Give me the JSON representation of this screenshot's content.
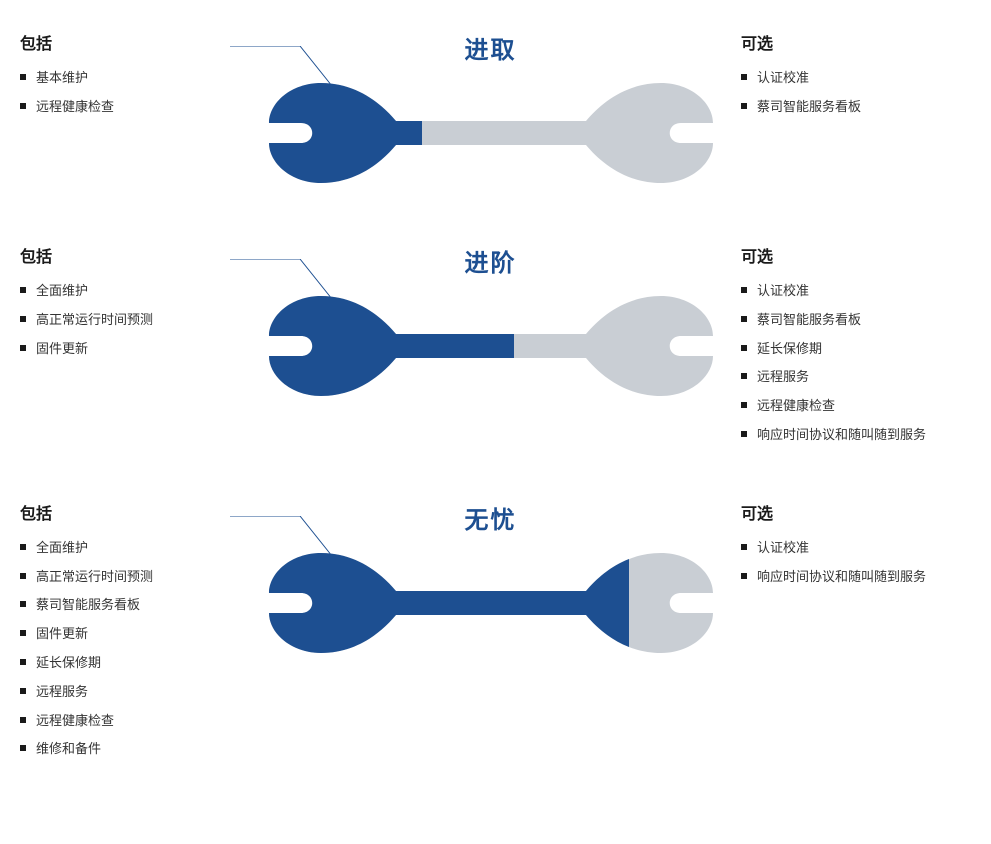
{
  "colors": {
    "primary": "#1d4f91",
    "secondary": "#c9ced4",
    "title_color": "#1d4f91",
    "text": "#333333",
    "bullet": "#1a1a1a",
    "leader": "#1d4f91",
    "background": "#ffffff"
  },
  "labels": {
    "included": "包括",
    "optional": "可选"
  },
  "tiers": [
    {
      "id": "tier-1",
      "title": "进取",
      "fill_ratio": 0.35,
      "included": [
        "基本维护",
        "远程健康检查"
      ],
      "optional": [
        "认证校准",
        "蔡司智能服务看板"
      ]
    },
    {
      "id": "tier-2",
      "title": "进阶",
      "fill_ratio": 0.55,
      "included": [
        "全面维护",
        "高正常运行时间预测",
        "固件更新"
      ],
      "optional": [
        "认证校准",
        "蔡司智能服务看板",
        "延长保修期",
        "远程服务",
        "远程健康检查",
        "响应时间协议和随叫随到服务"
      ]
    },
    {
      "id": "tier-3",
      "title": "无忧",
      "fill_ratio": 0.8,
      "included": [
        "全面维护",
        "高正常运行时间预测",
        "蔡司智能服务看板",
        "固件更新",
        "延长保修期",
        "远程服务",
        "远程健康检查",
        "维修和备件"
      ],
      "optional": [
        "认证校准",
        "响应时间协议和随叫随到服务"
      ]
    }
  ],
  "wrench": {
    "viewbox_w": 460,
    "viewbox_h": 120
  },
  "typography": {
    "title_fontsize": 24,
    "section_title_fontsize": 16,
    "item_fontsize": 13
  }
}
